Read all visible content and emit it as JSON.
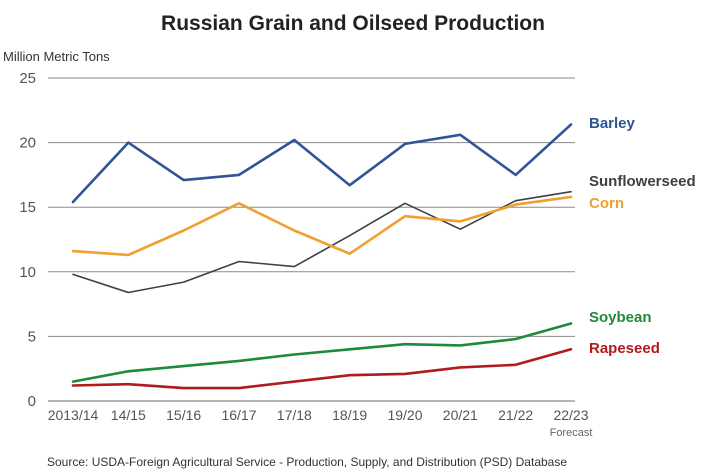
{
  "chart_data": {
    "type": "line",
    "title": "Russian Grain and Oilseed Production",
    "ylabel": "Million Metric Tons",
    "xlabel": "",
    "ylim": [
      0,
      25
    ],
    "yticks": [
      0,
      5,
      10,
      15,
      20,
      25
    ],
    "grid": true,
    "categories": [
      "2013/14",
      "14/15",
      "15/16",
      "16/17",
      "17/18",
      "18/19",
      "19/20",
      "20/21",
      "21/22",
      "22/23"
    ],
    "category_note": "Forecast",
    "series": [
      {
        "name": "Barley",
        "color": "#2f5597",
        "values": [
          15.4,
          20.0,
          17.1,
          17.5,
          20.2,
          16.7,
          19.9,
          20.6,
          17.5,
          21.4
        ]
      },
      {
        "name": "Sunflowerseed",
        "color": "#404040",
        "values": [
          9.8,
          8.4,
          9.2,
          10.8,
          10.4,
          12.8,
          15.3,
          13.3,
          15.5,
          16.2
        ]
      },
      {
        "name": "Corn",
        "color": "#f0a030",
        "values": [
          11.6,
          11.3,
          13.2,
          15.3,
          13.2,
          11.4,
          14.3,
          13.9,
          15.2,
          15.8
        ]
      },
      {
        "name": "Soybean",
        "color": "#1f8a3a",
        "values": [
          1.5,
          2.3,
          2.7,
          3.1,
          3.6,
          4.0,
          4.4,
          4.3,
          4.8,
          6.0
        ]
      },
      {
        "name": "Rapeseed",
        "color": "#b01c1c",
        "values": [
          1.2,
          1.3,
          1.0,
          1.0,
          1.5,
          2.0,
          2.1,
          2.6,
          2.8,
          4.0
        ]
      }
    ],
    "legend": "right, at line ends",
    "source": "Source: USDA-Foreign Agricultural Service - Production, Supply, and Distribution (PSD) Database"
  }
}
